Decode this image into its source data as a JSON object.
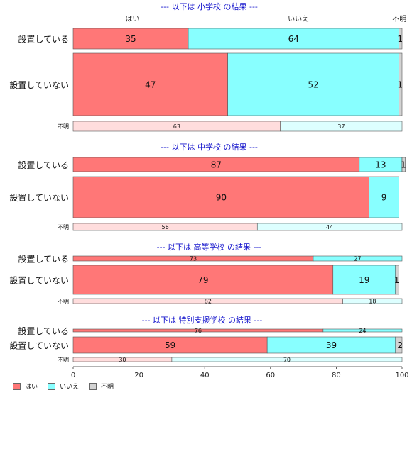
{
  "colors": {
    "yes": "#ff7777",
    "no": "#88ffff",
    "unknown": "#d3d3d3",
    "yes_light": "#ffdddd",
    "no_light": "#ddffff",
    "title": "#1414cc"
  },
  "chart_data": {
    "type": "bar",
    "orientation": "horizontal",
    "stacked": true,
    "xlim": [
      0,
      100
    ],
    "x_ticks": [
      "0",
      "20",
      "40",
      "60",
      "80",
      "100"
    ],
    "column_headers": [
      "はい",
      "いいえ",
      "不明"
    ],
    "legend": [
      "はい",
      "いいえ",
      "不明"
    ],
    "panels": [
      {
        "title": "--- 以下は 小学校 の結果 ---",
        "rows": [
          {
            "label": "設置している",
            "values": [
              35,
              64,
              1
            ]
          },
          {
            "label": "設置していない",
            "values": [
              47,
              52,
              1
            ]
          },
          {
            "label": "不明",
            "values": [
              63,
              37,
              0
            ]
          }
        ]
      },
      {
        "title": "--- 以下は 中学校 の結果 ---",
        "rows": [
          {
            "label": "設置している",
            "values": [
              87,
              13,
              1
            ]
          },
          {
            "label": "設置していない",
            "values": [
              90,
              9,
              0
            ]
          },
          {
            "label": "不明",
            "values": [
              56,
              44,
              0
            ]
          }
        ]
      },
      {
        "title": "--- 以下は 高等学校 の結果 ---",
        "rows": [
          {
            "label": "設置している",
            "values": [
              73,
              27,
              0
            ]
          },
          {
            "label": "設置していない",
            "values": [
              79,
              19,
              1
            ]
          },
          {
            "label": "不明",
            "values": [
              82,
              18,
              0
            ]
          }
        ]
      },
      {
        "title": "--- 以下は 特別支援学校 の結果 ---",
        "rows": [
          {
            "label": "設置している",
            "values": [
              76,
              24,
              0
            ]
          },
          {
            "label": "設置していない",
            "values": [
              59,
              39,
              2
            ]
          },
          {
            "label": "不明",
            "values": [
              30,
              70,
              0
            ]
          }
        ]
      }
    ]
  }
}
